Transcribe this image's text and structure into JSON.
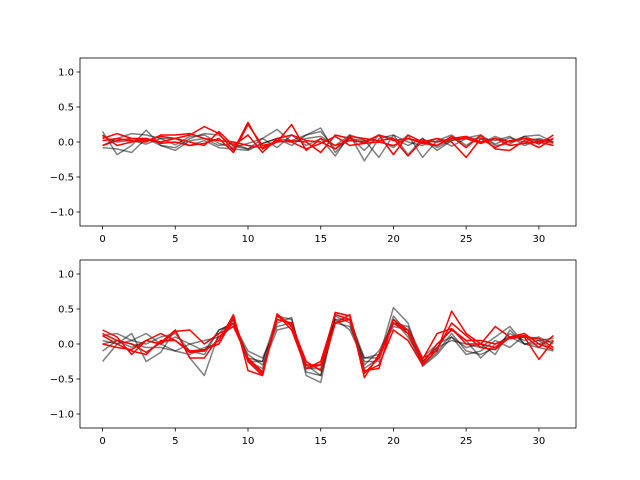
{
  "colors": {
    "gray": "#000000",
    "red": "#ff0000",
    "gray_alpha": 0.5
  },
  "chart_data": [
    {
      "type": "line",
      "title": "",
      "xlabel": "",
      "ylabel": "",
      "xlim": [
        -1.55,
        32.55
      ],
      "ylim": [
        -1.2,
        1.2
      ],
      "xticks": [
        "0",
        "5",
        "10",
        "15",
        "20",
        "25",
        "30"
      ],
      "yticks": [
        "−1.0",
        "−0.5",
        "0.0",
        "0.5",
        "1.0"
      ],
      "grid": false,
      "x": [
        0,
        1,
        2,
        3,
        4,
        5,
        6,
        7,
        8,
        9,
        10,
        11,
        12,
        13,
        14,
        15,
        16,
        17,
        18,
        19,
        20,
        21,
        22,
        23,
        24,
        25,
        26,
        27,
        28,
        29,
        30,
        31
      ],
      "series": [
        {
          "color": "gray",
          "values": [
            0.15,
            -0.18,
            -0.05,
            0.17,
            -0.05,
            -0.08,
            0.05,
            0.12,
            0.1,
            -0.06,
            -0.1,
            -0.02,
            0.05,
            0.02,
            0.1,
            0.2,
            -0.15,
            0.07,
            -0.12,
            0.1,
            0.05,
            -0.05,
            0.05,
            -0.08,
            0.03,
            0.06,
            0.1,
            -0.03,
            0.06,
            0.0,
            0.05,
            0.0
          ]
        },
        {
          "color": "gray",
          "values": [
            -0.05,
            0.05,
            0.12,
            0.1,
            0.05,
            -0.04,
            0.08,
            0.1,
            -0.02,
            -0.08,
            -0.02,
            0.05,
            0.18,
            0.0,
            0.05,
            0.08,
            -0.05,
            0.1,
            -0.27,
            0.05,
            0.1,
            0.0,
            -0.05,
            0.05,
            -0.06,
            0.05,
            -0.02,
            0.08,
            0.0,
            0.08,
            0.0,
            0.05
          ]
        },
        {
          "color": "gray",
          "values": [
            -0.08,
            -0.1,
            -0.15,
            0.05,
            -0.05,
            -0.12,
            0.02,
            0.05,
            -0.05,
            -0.02,
            -0.1,
            0.05,
            -0.08,
            0.1,
            -0.05,
            0.05,
            -0.2,
            0.1,
            0.03,
            -0.22,
            0.1,
            -0.18,
            0.05,
            -0.12,
            0.02,
            0.05,
            0.05,
            0.02,
            0.08,
            -0.05,
            0.02,
            -0.02
          ]
        },
        {
          "color": "gray",
          "values": [
            0.08,
            0.0,
            0.02,
            -0.03,
            0.05,
            0.05,
            -0.05,
            0.02,
            -0.08,
            -0.1,
            -0.12,
            -0.02,
            0.05,
            -0.05,
            0.1,
            0.15,
            -0.1,
            0.05,
            0.02,
            0.02,
            -0.08,
            0.1,
            -0.22,
            0.02,
            0.1,
            -0.05,
            0.08,
            -0.05,
            -0.03,
            0.08,
            0.1,
            0.0
          ]
        },
        {
          "color": "red",
          "values": [
            0.05,
            0.12,
            0.05,
            0.02,
            0.08,
            0.05,
            0.1,
            0.22,
            0.12,
            -0.12,
            0.28,
            -0.1,
            0.0,
            0.25,
            -0.12,
            0.05,
            -0.05,
            0.02,
            0.0,
            0.1,
            0.02,
            0.05,
            -0.02,
            -0.05,
            0.05,
            0.05,
            -0.02,
            0.05,
            0.0,
            0.05,
            -0.03,
            0.1
          ]
        },
        {
          "color": "red",
          "values": [
            -0.05,
            0.02,
            0.05,
            0.05,
            -0.02,
            0.0,
            -0.05,
            -0.02,
            0.05,
            -0.15,
            0.25,
            -0.05,
            0.0,
            0.02,
            0.0,
            -0.15,
            0.1,
            0.05,
            -0.02,
            0.1,
            -0.18,
            0.1,
            0.0,
            0.05,
            0.0,
            -0.22,
            0.05,
            -0.08,
            0.02,
            0.05,
            0.03,
            0.0
          ]
        },
        {
          "color": "red",
          "values": [
            0.1,
            -0.05,
            0.0,
            0.05,
            0.0,
            0.05,
            0.0,
            -0.05,
            0.15,
            -0.05,
            0.1,
            -0.15,
            0.05,
            0.1,
            0.02,
            0.0,
            -0.1,
            0.08,
            0.05,
            0.02,
            0.05,
            -0.2,
            0.02,
            0.0,
            0.05,
            0.08,
            0.0,
            0.05,
            -0.05,
            -0.02,
            0.0,
            -0.05
          ]
        },
        {
          "color": "red",
          "values": [
            0.02,
            0.05,
            0.02,
            0.0,
            0.1,
            0.1,
            0.12,
            0.05,
            0.02,
            0.0,
            -0.05,
            -0.08,
            0.02,
            0.0,
            -0.1,
            -0.02,
            0.08,
            -0.05,
            -0.02,
            0.0,
            -0.05,
            0.05,
            0.0,
            -0.05,
            0.08,
            -0.08,
            0.1,
            -0.1,
            -0.12,
            0.02,
            -0.08,
            0.05
          ]
        }
      ]
    },
    {
      "type": "line",
      "title": "",
      "xlabel": "",
      "ylabel": "",
      "xlim": [
        -1.55,
        32.55
      ],
      "ylim": [
        -1.2,
        1.2
      ],
      "xticks": [
        "0",
        "5",
        "10",
        "15",
        "20",
        "25",
        "30"
      ],
      "yticks": [
        "−1.0",
        "−0.5",
        "0.0",
        "0.5",
        "1.0"
      ],
      "grid": false,
      "x": [
        0,
        1,
        2,
        3,
        4,
        5,
        6,
        7,
        8,
        9,
        10,
        11,
        12,
        13,
        14,
        15,
        16,
        17,
        18,
        19,
        20,
        21,
        22,
        23,
        24,
        25,
        26,
        27,
        28,
        29,
        30,
        31
      ],
      "series": [
        {
          "color": "gray",
          "values": [
            -0.25,
            0.0,
            0.15,
            -0.25,
            -0.12,
            0.2,
            -0.2,
            -0.45,
            0.15,
            0.35,
            -0.25,
            -0.25,
            0.3,
            0.38,
            -0.45,
            -0.55,
            0.4,
            0.3,
            -0.35,
            -0.2,
            0.52,
            0.3,
            -0.32,
            -0.15,
            0.1,
            -0.15,
            -0.1,
            0.05,
            -0.05,
            0.12,
            0.05,
            -0.08
          ]
        },
        {
          "color": "gray",
          "values": [
            0.12,
            0.15,
            0.05,
            0.15,
            0.0,
            0.1,
            0.0,
            -0.1,
            0.2,
            0.28,
            -0.1,
            -0.2,
            0.25,
            0.3,
            -0.3,
            -0.45,
            0.3,
            0.25,
            -0.2,
            -0.2,
            0.35,
            0.1,
            -0.25,
            -0.05,
            0.05,
            0.0,
            -0.05,
            0.1,
            0.25,
            0.0,
            0.05,
            0.08
          ]
        },
        {
          "color": "gray",
          "values": [
            0.0,
            0.05,
            0.0,
            -0.05,
            -0.05,
            -0.1,
            0.0,
            0.05,
            0.1,
            0.25,
            -0.15,
            -0.3,
            0.2,
            0.25,
            -0.35,
            -0.35,
            0.35,
            0.2,
            -0.25,
            -0.25,
            0.4,
            0.15,
            -0.3,
            -0.12,
            0.15,
            -0.1,
            -0.15,
            -0.05,
            0.15,
            0.05,
            0.1,
            0.0
          ]
        },
        {
          "color": "gray",
          "values": [
            -0.1,
            0.05,
            -0.05,
            0.05,
            0.0,
            -0.1,
            -0.15,
            -0.05,
            0.0,
            0.35,
            -0.2,
            -0.25,
            0.4,
            0.35,
            -0.4,
            -0.45,
            0.45,
            0.4,
            -0.3,
            -0.1,
            0.3,
            0.25,
            -0.2,
            0.0,
            0.1,
            -0.05,
            0.0,
            -0.15,
            0.2,
            0.0,
            -0.05,
            -0.1
          ]
        },
        {
          "color": "gray",
          "values": [
            0.05,
            0.0,
            0.05,
            0.0,
            0.1,
            0.15,
            -0.1,
            -0.15,
            0.2,
            0.3,
            -0.25,
            -0.35,
            0.35,
            0.3,
            -0.3,
            -0.3,
            0.35,
            0.35,
            -0.2,
            -0.15,
            0.25,
            0.2,
            -0.25,
            -0.05,
            0.22,
            0.05,
            -0.2,
            0.0,
            0.1,
            0.0,
            0.0,
            0.05
          ]
        },
        {
          "color": "red",
          "values": [
            0.2,
            0.1,
            -0.15,
            0.05,
            0.15,
            0.05,
            -0.12,
            -0.1,
            0.05,
            0.42,
            -0.38,
            -0.45,
            0.43,
            0.25,
            -0.3,
            -0.3,
            0.45,
            0.4,
            -0.48,
            -0.15,
            0.3,
            0.2,
            -0.2,
            -0.1,
            0.47,
            0.15,
            0.0,
            -0.05,
            0.1,
            0.15,
            0.0,
            -0.08
          ]
        },
        {
          "color": "red",
          "values": [
            0.15,
            0.05,
            0.0,
            -0.12,
            0.02,
            0.2,
            -0.2,
            -0.2,
            0.1,
            0.3,
            -0.22,
            -0.42,
            0.35,
            0.3,
            -0.35,
            -0.25,
            0.42,
            0.35,
            -0.38,
            -0.35,
            0.35,
            0.2,
            -0.28,
            0.0,
            0.2,
            0.05,
            0.05,
            0.0,
            0.08,
            0.1,
            -0.22,
            0.05
          ]
        },
        {
          "color": "red",
          "values": [
            0.0,
            -0.05,
            -0.08,
            0.05,
            0.0,
            0.18,
            0.2,
            0.0,
            0.15,
            0.25,
            -0.2,
            -0.4,
            0.42,
            0.2,
            -0.35,
            -0.3,
            0.3,
            0.42,
            -0.42,
            -0.2,
            0.3,
            0.15,
            -0.22,
            0.15,
            0.22,
            0.0,
            0.0,
            0.25,
            0.1,
            0.1,
            0.08,
            -0.05
          ]
        },
        {
          "color": "red",
          "values": [
            0.12,
            0.0,
            -0.1,
            -0.15,
            0.05,
            0.05,
            -0.1,
            -0.08,
            0.0,
            0.38,
            -0.25,
            -0.45,
            0.4,
            0.28,
            -0.25,
            -0.38,
            0.3,
            0.35,
            -0.4,
            -0.3,
            0.2,
            0.05,
            -0.3,
            -0.08,
            0.3,
            0.12,
            -0.05,
            -0.08,
            0.1,
            0.12,
            -0.05,
            0.12
          ]
        }
      ]
    }
  ]
}
